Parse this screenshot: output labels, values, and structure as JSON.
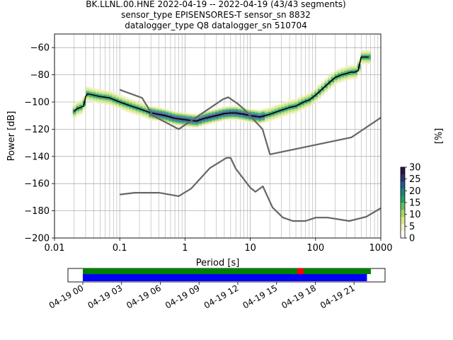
{
  "title_lines": [
    "BK.LLNL.00.HNE   2022-04-19 -- 2022-04-19  (43/43 segments)",
    "sensor_type EPISENSORES-T sensor_sn 8832",
    "datalogger_type Q8 datalogger_sn 510704"
  ],
  "chart_data": {
    "type": "line",
    "xlabel": "Period [s]",
    "ylabel": "Power [dB]",
    "x_scale": "log",
    "xlim": [
      0.01,
      1000
    ],
    "ylim": [
      -200,
      -50
    ],
    "x_ticks": [
      0.01,
      0.1,
      1,
      10,
      100,
      1000
    ],
    "x_tick_labels": [
      "0.01",
      "0.1",
      "1",
      "10",
      "100",
      "1000"
    ],
    "y_ticks": [
      -200,
      -180,
      -160,
      -140,
      -120,
      -100,
      -80,
      -60
    ],
    "y_tick_labels": [
      "−200",
      "−180",
      "−160",
      "−140",
      "−120",
      "−100",
      "−80",
      "−60"
    ],
    "grid": true,
    "series": [
      {
        "role": "mode",
        "color": "#000000",
        "x": [
          0.02,
          0.022,
          0.025,
          0.028,
          0.03,
          0.032,
          0.04,
          0.05,
          0.07,
          0.1,
          0.15,
          0.2,
          0.3,
          0.5,
          0.7,
          1,
          1.5,
          2,
          3,
          4,
          5,
          6,
          8,
          10,
          14,
          20,
          30,
          40,
          50,
          60,
          70,
          80,
          100,
          130,
          160,
          200,
          250,
          300,
          350,
          400,
          450,
          500,
          600,
          650
        ],
        "y": [
          -107,
          -105,
          -104,
          -103,
          -96,
          -94,
          -95,
          -96,
          -97,
          -100,
          -103,
          -105,
          -108,
          -110,
          -112,
          -113,
          -114,
          -112,
          -110,
          -108.5,
          -108,
          -108,
          -109,
          -110,
          -111,
          -109,
          -106,
          -104,
          -103,
          -101,
          -99.5,
          -98.5,
          -95,
          -90,
          -86,
          -82,
          -80,
          -79,
          -78,
          -78,
          -77,
          -67,
          -67,
          -67
        ]
      },
      {
        "role": "noise-model-high",
        "color": "#666666",
        "x": [
          0.1,
          0.22,
          0.32,
          0.8,
          3.8,
          4.6,
          6.3,
          7.9,
          15.4,
          20,
          354.8,
          1000
        ],
        "y": [
          -91,
          -97,
          -110,
          -120,
          -98,
          -96.5,
          -101,
          -105,
          -120,
          -138.5,
          -126,
          -111.5
        ]
      },
      {
        "role": "noise-model-low",
        "color": "#666666",
        "x": [
          0.1,
          0.17,
          0.4,
          0.8,
          1.24,
          2.4,
          4.3,
          5,
          6,
          10,
          12,
          15.6,
          21.9,
          31.6,
          45,
          70,
          101,
          154,
          328,
          600,
          1000
        ],
        "y": [
          -168,
          -166.7,
          -166.7,
          -169.2,
          -163.7,
          -148.6,
          -141.1,
          -141.1,
          -149,
          -163,
          -166,
          -162,
          -177.5,
          -185,
          -187.5,
          -187.5,
          -185,
          -185,
          -187.5,
          -184.4,
          -178
        ]
      }
    ],
    "ppsd_density": {
      "colormap": "pqlx",
      "colorbar_label": "[%]",
      "colorbar_range": [
        0,
        30
      ],
      "colorbar_ticks": [
        0,
        5,
        10,
        15,
        20,
        25,
        30
      ]
    }
  },
  "colorbar": {
    "label": "[%]",
    "tick_labels": [
      "0",
      "5",
      "10",
      "15",
      "20",
      "25",
      "30"
    ],
    "colors": [
      "#ffffff",
      "#f4f0c8",
      "#d8e890",
      "#a8d860",
      "#60c060",
      "#22a060",
      "#208078",
      "#205a90",
      "#2c2f6a",
      "#301050"
    ]
  },
  "timeline": {
    "tick_labels": [
      "04-19 00",
      "04-19 03",
      "04-19 06",
      "04-19 09",
      "04-19 12",
      "04-19 15",
      "04-19 18",
      "04-19 21"
    ],
    "tick_hours": [
      0,
      3,
      6,
      9,
      12,
      15,
      18,
      21
    ],
    "range_hours": [
      -1.15,
      23.4
    ],
    "data_bar": {
      "color": "#008000",
      "start_hour": 0,
      "end_hour": 22.3
    },
    "gap_marker": {
      "color": "#ff0000",
      "start_hour": 16.6,
      "end_hour": 17.1
    },
    "processed_bar": {
      "color": "#0000ff",
      "start_hour": 0,
      "end_hour": 22
    }
  }
}
